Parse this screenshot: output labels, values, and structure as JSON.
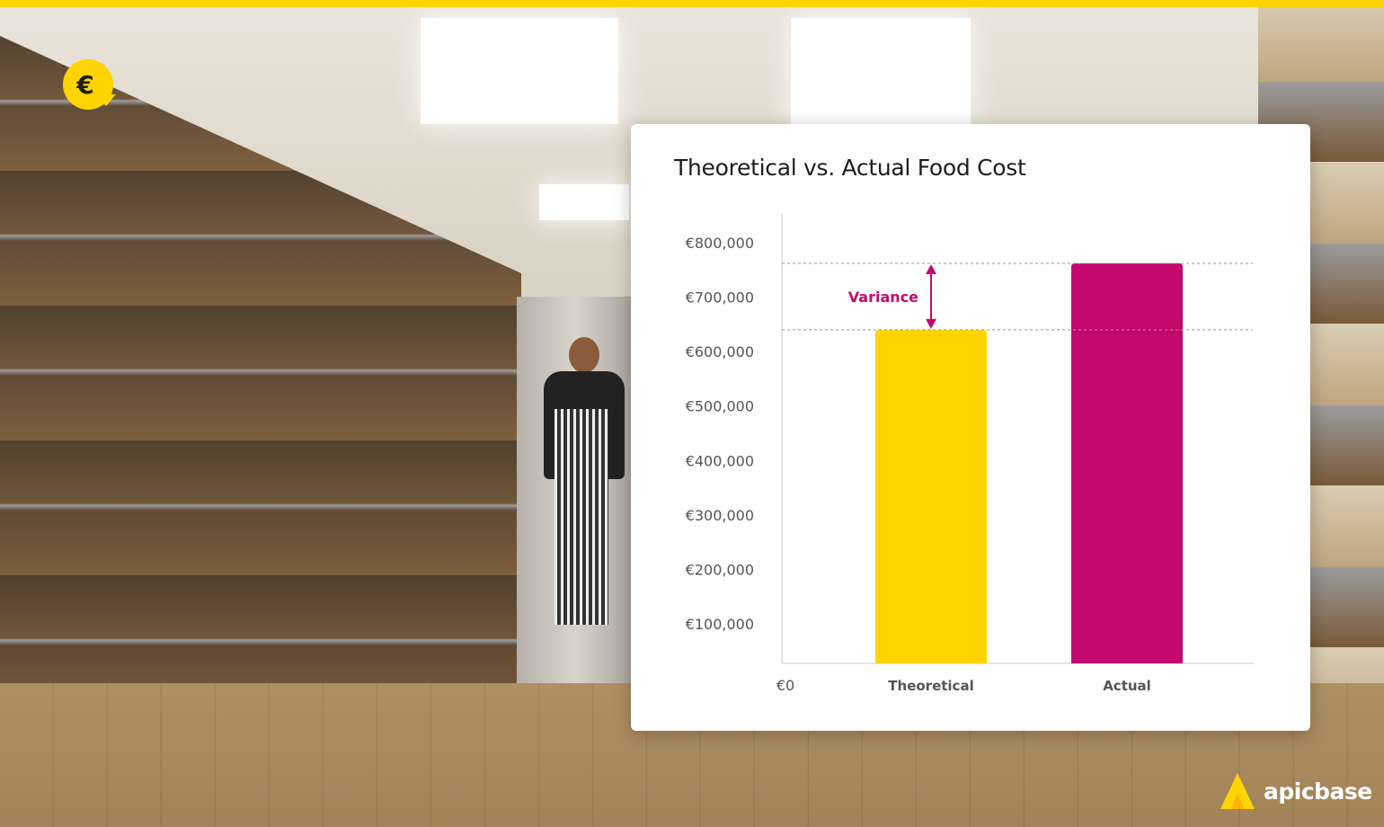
{
  "header": {
    "icon": "euro-cost-down-icon"
  },
  "chart_data": {
    "type": "bar",
    "title": "Theoretical vs. Actual Food Cost",
    "categories": [
      "Theoretical",
      "Actual"
    ],
    "values": [
      640000,
      762000
    ],
    "colors": [
      "#ffd400",
      "#c4096e"
    ],
    "y_ticks": [
      0,
      100000,
      200000,
      300000,
      400000,
      500000,
      600000,
      700000,
      800000
    ],
    "y_tick_labels": [
      "€0",
      "€100,000",
      "€200,000",
      "€300,000",
      "€400,000",
      "€500,000",
      "€600,000",
      "€700,000",
      "€800,000"
    ],
    "ylim": [
      0,
      850000
    ],
    "grid": false,
    "annotations": [
      {
        "text": "Variance",
        "from": 640000,
        "to": 762000,
        "color": "#c4096e"
      }
    ]
  },
  "brand": {
    "name": "apicbase",
    "accent": "#ffd400"
  }
}
